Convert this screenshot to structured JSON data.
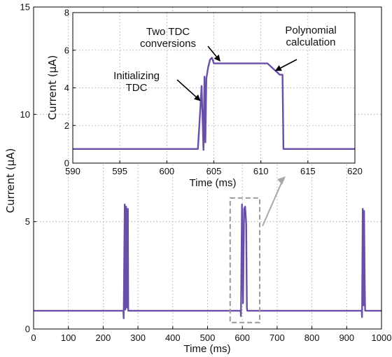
{
  "chart_data": [
    {
      "id": "main",
      "type": "line",
      "xlabel": "Time (ms)",
      "ylabel": "Current (μA)",
      "xlim": [
        0,
        1000
      ],
      "ylim": [
        0,
        15
      ],
      "xticks": [
        0,
        100,
        200,
        300,
        400,
        500,
        600,
        700,
        800,
        900,
        1000
      ],
      "yticks": [
        0,
        5,
        10,
        15
      ],
      "grid": "dotted",
      "series": [
        {
          "color": "#6a4fa8",
          "baseline": 0.85,
          "x": [
            0,
            258,
            259,
            262,
            264,
            266,
            268,
            271,
            272,
            300,
            400,
            500,
            595,
            596,
            599,
            602,
            605,
            608,
            611,
            613,
            614,
            700,
            800,
            900,
            943,
            944,
            946,
            948,
            950,
            952,
            953,
            1000
          ],
          "y": [
            0.85,
            0.85,
            0.5,
            5.8,
            0.9,
            5.7,
            1.0,
            5.6,
            0.85,
            0.85,
            0.85,
            0.85,
            0.85,
            0.6,
            5.8,
            1.2,
            5.6,
            5.7,
            4.9,
            1.0,
            0.85,
            0.85,
            0.85,
            0.85,
            0.85,
            0.55,
            5.6,
            1.1,
            5.5,
            2.0,
            0.85,
            0.85
          ]
        }
      ],
      "highlight_box": {
        "x": [
          565,
          650
        ],
        "y": [
          0.3,
          6.1
        ],
        "style": "dashed",
        "color": "#9a9a9a"
      }
    },
    {
      "id": "inset",
      "type": "line",
      "xlabel": "Time (ms)",
      "ylabel": "Current (μA)",
      "xlim": [
        590,
        620
      ],
      "ylim": [
        0,
        8
      ],
      "xticks": [
        590,
        595,
        600,
        605,
        610,
        615,
        620
      ],
      "yticks": [
        0,
        2,
        4,
        6,
        8
      ],
      "grid": "dotted",
      "series": [
        {
          "color": "#6a4fa8",
          "x": [
            590,
            603.3,
            603.5,
            603.7,
            603.9,
            604.0,
            604.1,
            604.2,
            604.4,
            604.6,
            604.8,
            605.0,
            608,
            610.5,
            610.7,
            611.8,
            612.0,
            612.3,
            612.4,
            620
          ],
          "y": [
            0.75,
            0.75,
            2.4,
            4.1,
            0.7,
            4.6,
            1.1,
            4.5,
            5.1,
            5.5,
            5.6,
            5.3,
            5.3,
            5.3,
            5.3,
            4.8,
            4.7,
            4.7,
            0.75,
            0.75
          ]
        }
      ],
      "annotations": [
        {
          "text": [
            "Initializing",
            "TDC"
          ],
          "arrow_to": [
            603.6,
            3.3
          ]
        },
        {
          "text": [
            "Two TDC",
            "conversions"
          ],
          "arrow_to": [
            605.7,
            5.4
          ]
        },
        {
          "text": [
            "Polynomial",
            "calculation"
          ],
          "arrow_to": [
            611.5,
            4.9
          ]
        }
      ]
    }
  ]
}
